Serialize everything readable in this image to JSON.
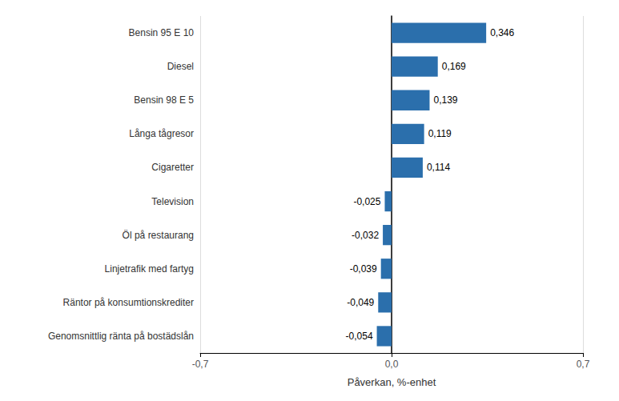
{
  "chart_data": {
    "type": "bar",
    "orientation": "horizontal",
    "categories": [
      "Genomsnittlig ränta på bostädslån",
      "Räntor på konsumtionskrediter",
      "Linjetrafik med fartyg",
      "Öl på restaurang",
      "Television",
      "Cigaretter",
      "Långa tågresor",
      "Bensin 98 E 5",
      "Diesel",
      "Bensin 95 E 10"
    ],
    "values": [
      -0.054,
      -0.049,
      -0.039,
      -0.032,
      -0.025,
      0.114,
      0.119,
      0.139,
      0.169,
      0.346
    ],
    "value_labels": [
      "-0,054",
      "-0,049",
      "-0,039",
      "-0,032",
      "-0,025",
      "0,114",
      "0,119",
      "0,139",
      "0,169",
      "0,346"
    ],
    "data_labels": true,
    "color": "#2b6fac",
    "xlabel": "Påverkan, %-enhet",
    "xlim": [
      -0.7,
      0.7
    ],
    "xticks": [
      {
        "value": -0.7,
        "label": "-0,7"
      },
      {
        "value": 0.0,
        "label": "0,0"
      },
      {
        "value": 0.7,
        "label": "0,7"
      }
    ],
    "grid": true
  }
}
